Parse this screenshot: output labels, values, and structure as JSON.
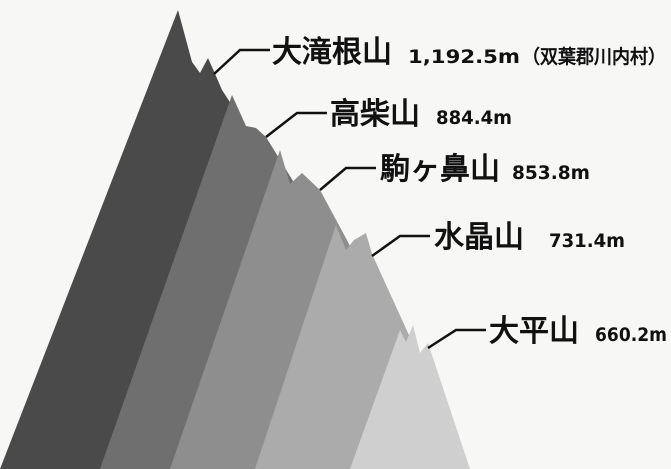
{
  "mountains": [
    {
      "name": "大滝根山",
      "elevation": "1,192.5m",
      "note": "（双葉郡川内村）",
      "elevation_m": 1192.5,
      "color": "#4a4a4a"
    },
    {
      "name": "高柴山",
      "elevation": "884.4m",
      "note": "",
      "elevation_m": 884.4,
      "color": "#6f6f6f"
    },
    {
      "name": "駒ヶ鼻山",
      "elevation": "853.8m",
      "note": "",
      "elevation_m": 853.8,
      "color": "#8e8e8e"
    },
    {
      "name": "水晶山",
      "elevation": "731.4m",
      "note": "",
      "elevation_m": 731.4,
      "color": "#ababab"
    },
    {
      "name": "大平山",
      "elevation": "660.2m",
      "note": "",
      "elevation_m": 660.2,
      "color": "#cfcfcf"
    }
  ]
}
